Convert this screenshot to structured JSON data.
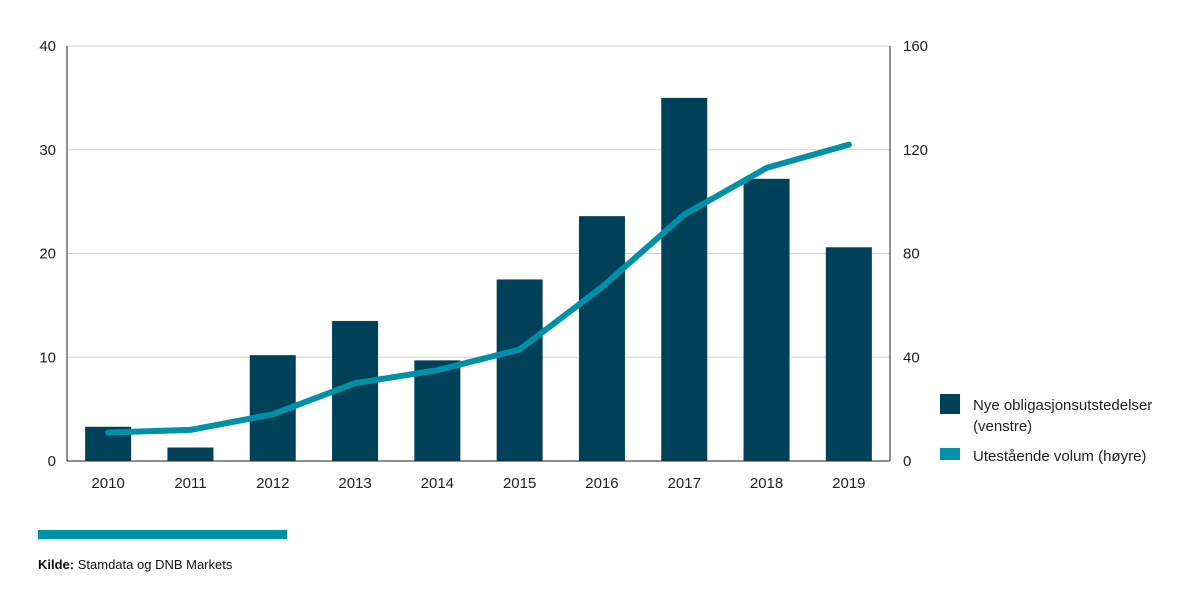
{
  "chart_data": {
    "type": "bar",
    "categories": [
      "2010",
      "2011",
      "2012",
      "2013",
      "2014",
      "2015",
      "2016",
      "2017",
      "2018",
      "2019"
    ],
    "series": [
      {
        "name": "Nye obligasjonsutstedelser (venstre)",
        "type": "bar",
        "axis": "left",
        "values": [
          3.3,
          1.3,
          10.2,
          13.5,
          9.7,
          17.5,
          23.6,
          35.0,
          27.2,
          20.6
        ]
      },
      {
        "name": "Utestående volum (høyre)",
        "type": "line",
        "axis": "right",
        "values": [
          11,
          12,
          18,
          30,
          35,
          43,
          67,
          95,
          113,
          122
        ]
      }
    ],
    "left_axis": {
      "ylim": [
        0,
        40
      ],
      "ticks": [
        "0",
        "10",
        "20",
        "30",
        "40"
      ]
    },
    "right_axis": {
      "ylim": [
        0,
        160
      ],
      "ticks": [
        "0",
        "40",
        "80",
        "120",
        "160"
      ]
    },
    "grid": true,
    "legend_position": "right",
    "legend": [
      {
        "lines": [
          "Nye obligasjonsutstedelser",
          "(venstre)"
        ]
      },
      {
        "lines": [
          "Utestående volum (høyre)"
        ]
      }
    ]
  },
  "colors": {
    "bar": "#00415a",
    "line": "#0091a8",
    "grid": "#d6d6d6",
    "axis": "#222222"
  },
  "source": {
    "label": "Kilde:",
    "text": " Stamdata og DNB Markets"
  }
}
